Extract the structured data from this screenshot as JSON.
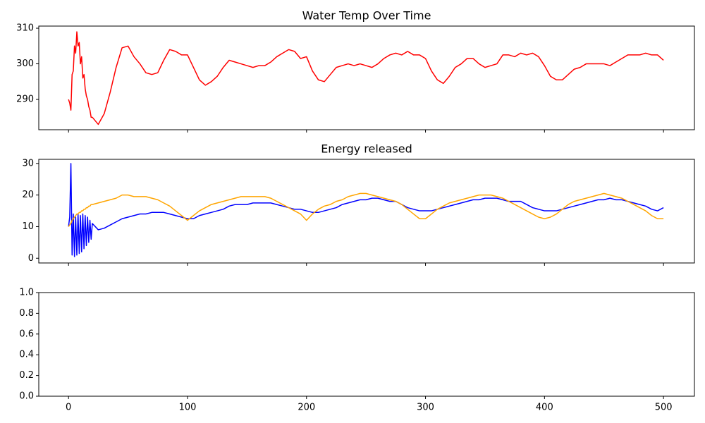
{
  "chart_data": [
    {
      "type": "line",
      "title": "Water Temp Over Time",
      "x": [
        0,
        1,
        2,
        3,
        4,
        5,
        6,
        7,
        8,
        9,
        10,
        11,
        12,
        13,
        14,
        15,
        16,
        17,
        18,
        19,
        20,
        25,
        30,
        35,
        40,
        45,
        50,
        55,
        60,
        65,
        70,
        75,
        80,
        85,
        90,
        95,
        100,
        105,
        110,
        115,
        120,
        125,
        130,
        135,
        140,
        145,
        150,
        155,
        160,
        165,
        170,
        175,
        180,
        185,
        190,
        195,
        200,
        205,
        210,
        215,
        220,
        225,
        230,
        235,
        240,
        245,
        250,
        255,
        260,
        265,
        270,
        275,
        280,
        285,
        290,
        295,
        300,
        305,
        310,
        315,
        320,
        325,
        330,
        335,
        340,
        345,
        350,
        355,
        360,
        365,
        370,
        375,
        380,
        385,
        390,
        395,
        400,
        405,
        410,
        415,
        420,
        425,
        430,
        435,
        440,
        445,
        450,
        455,
        460,
        465,
        470,
        475,
        480,
        485,
        490,
        495,
        500
      ],
      "series": [
        {
          "color": "#ff0000",
          "values": [
            290,
            289,
            287,
            297,
            298,
            305,
            303,
            309,
            305,
            306,
            300,
            302,
            296,
            297,
            293,
            291,
            290,
            288,
            287,
            285,
            285,
            283,
            286,
            292,
            299,
            304.5,
            305,
            302,
            300,
            297.5,
            297,
            297.5,
            301,
            304,
            303.5,
            302.5,
            302.5,
            299,
            295.5,
            294,
            295,
            296.5,
            299,
            301,
            300.5,
            300,
            299.5,
            299,
            299.5,
            299.5,
            300.5,
            302,
            303,
            304,
            303.5,
            301.5,
            302,
            298,
            295.5,
            295,
            297,
            299,
            299.5,
            300,
            299.5,
            300,
            299.5,
            299,
            300,
            301.5,
            302.5,
            303,
            302.5,
            303.5,
            302.5,
            302.5,
            301.5,
            298,
            295.5,
            294.5,
            296.5,
            299,
            300,
            301.5,
            301.5,
            300,
            299,
            299.5,
            300,
            302.5,
            302.5,
            302,
            303,
            302.5,
            303,
            302,
            299.5,
            296.5,
            295.5,
            295.5,
            297,
            298.5,
            299,
            300,
            300,
            300,
            300,
            299.5,
            300.5,
            301.5,
            302.5,
            302.5,
            302.5,
            303,
            302.5,
            302.5,
            301
          ]
        }
      ],
      "xlim": [
        -25,
        526
      ],
      "ylim": [
        281.5,
        310.6
      ],
      "xticks": [
        0,
        100,
        200,
        300,
        400,
        500
      ],
      "yticks": [
        290,
        300,
        310
      ]
    },
    {
      "type": "line",
      "title": "Energy released",
      "x": [
        0,
        1,
        2,
        3,
        4,
        5,
        6,
        7,
        8,
        9,
        10,
        11,
        12,
        13,
        14,
        15,
        16,
        17,
        18,
        19,
        20,
        25,
        30,
        35,
        40,
        45,
        50,
        55,
        60,
        65,
        70,
        75,
        80,
        85,
        90,
        95,
        100,
        105,
        110,
        115,
        120,
        125,
        130,
        135,
        140,
        145,
        150,
        155,
        160,
        165,
        170,
        175,
        180,
        185,
        190,
        195,
        200,
        205,
        210,
        215,
        220,
        225,
        230,
        235,
        240,
        245,
        250,
        255,
        260,
        265,
        270,
        275,
        280,
        285,
        290,
        295,
        300,
        305,
        310,
        315,
        320,
        325,
        330,
        335,
        340,
        345,
        350,
        355,
        360,
        365,
        370,
        375,
        380,
        385,
        390,
        395,
        400,
        405,
        410,
        415,
        420,
        425,
        430,
        435,
        440,
        445,
        450,
        455,
        460,
        465,
        470,
        475,
        480,
        485,
        490,
        495,
        500
      ],
      "series": [
        {
          "color": "#0000ff",
          "values": [
            10,
            13,
            30,
            1,
            14,
            0.5,
            13,
            1,
            14,
            1.5,
            13.5,
            2,
            14,
            3,
            13.5,
            4,
            13,
            5,
            12,
            6,
            11,
            9,
            9.5,
            10.5,
            11.5,
            12.5,
            13,
            13.5,
            14,
            14,
            14.5,
            14.5,
            14.5,
            14,
            13.5,
            13,
            12.5,
            12.5,
            13.5,
            14,
            14.5,
            15,
            15.5,
            16.5,
            17,
            17,
            17,
            17.5,
            17.5,
            17.5,
            17.5,
            17,
            16.5,
            16,
            15.5,
            15.5,
            15,
            14.5,
            14.5,
            15,
            15.5,
            16,
            17,
            17.5,
            18,
            18.5,
            18.5,
            19,
            19,
            18.5,
            18,
            18,
            17,
            16,
            15.5,
            15,
            15,
            15,
            15.5,
            16,
            16.5,
            17,
            17.5,
            18,
            18.5,
            18.5,
            19,
            19,
            19,
            18.5,
            18,
            18,
            18,
            17,
            16,
            15.5,
            15,
            15,
            15,
            15.5,
            16,
            16.5,
            17,
            17.5,
            18,
            18.5,
            18.5,
            19,
            18.5,
            18.5,
            18,
            17.5,
            17,
            16.5,
            15.5,
            15,
            16
          ]
        },
        {
          "color": "#ffa500",
          "values": [
            10,
            10.5,
            11,
            12,
            12.5,
            13,
            13.5,
            14,
            14,
            14.5,
            14.5,
            15,
            15,
            15.5,
            15.5,
            16,
            16,
            16.5,
            16.5,
            17,
            17,
            17.5,
            18,
            18.5,
            19,
            20,
            20,
            19.5,
            19.5,
            19.5,
            19,
            18.5,
            17.5,
            16.5,
            15,
            13.5,
            12,
            13.5,
            15,
            16,
            17,
            17.5,
            18,
            18.5,
            19,
            19.5,
            19.5,
            19.5,
            19.5,
            19.5,
            19,
            18,
            17,
            16,
            15,
            14,
            12,
            14,
            15.5,
            16.5,
            17,
            18,
            18.5,
            19.5,
            20,
            20.5,
            20.5,
            20,
            19.5,
            19,
            18.5,
            18,
            17,
            15.5,
            14,
            12.5,
            12.5,
            14,
            15.5,
            16.5,
            17.5,
            18,
            18.5,
            19,
            19.5,
            20,
            20,
            20,
            19.5,
            19,
            18,
            17,
            16,
            15,
            14,
            13,
            12.5,
            13,
            14,
            15.5,
            17,
            18,
            18.5,
            19,
            19.5,
            20,
            20.5,
            20,
            19.5,
            19,
            18,
            17,
            16,
            15,
            13.5,
            12.5,
            12.5
          ]
        }
      ],
      "xlim": [
        -25,
        526
      ],
      "ylim": [
        -1.5,
        31.3
      ],
      "xticks": [
        0,
        100,
        200,
        300,
        400,
        500
      ],
      "yticks": [
        0,
        10,
        20,
        30
      ]
    },
    {
      "type": "line",
      "xlim": [
        -25,
        526
      ],
      "ylim": [
        0,
        1
      ],
      "xticks": [
        0,
        100,
        200,
        300,
        400,
        500
      ],
      "yticks": [
        {
          "value": 0,
          "label": "0.0"
        },
        {
          "value": 0.2,
          "label": "0.2"
        },
        {
          "value": 0.4,
          "label": "0.4"
        },
        {
          "value": 0.6,
          "label": "0.6"
        },
        {
          "value": 0.8,
          "label": "0.8"
        },
        {
          "value": 1,
          "label": "1.0"
        }
      ]
    }
  ]
}
